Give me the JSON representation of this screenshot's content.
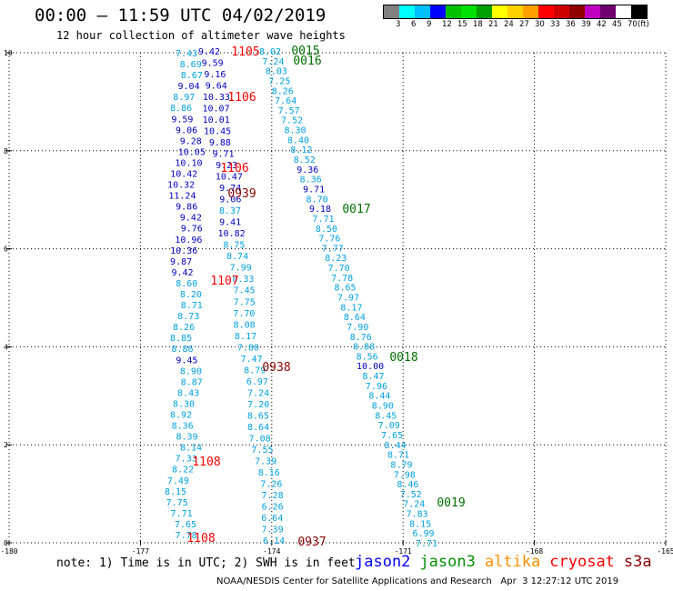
{
  "header": {
    "title": "00:00 – 11:59 UTC 04/02/2019",
    "subtitle": "12 hour collection of altimeter wave heights"
  },
  "legend": {
    "colors": [
      "#808080",
      "#00ffff",
      "#00c0ff",
      "#0000ff",
      "#00c000",
      "#00e000",
      "#00a000",
      "#ffff00",
      "#ffd000",
      "#ffa000",
      "#ff0000",
      "#d00000",
      "#900000",
      "#c000c0",
      "#700070",
      "#ffffff",
      "#000000"
    ],
    "labels": [
      "3",
      "6",
      "9",
      "12",
      "15",
      "18",
      "21",
      "24",
      "27",
      "30",
      "33",
      "36",
      "39",
      "42",
      "45",
      "70",
      "(ft)"
    ]
  },
  "chart_data": {
    "type": "scatter",
    "title": "12 hour collection of altimeter wave heights",
    "xlim": [
      -180,
      -165
    ],
    "ylim": [
      0,
      10
    ],
    "xticks": [
      -180,
      -177,
      -174,
      -171,
      -168,
      -165
    ],
    "xtick_labels": [
      "-180",
      "-177",
      "-174",
      "-171",
      "-168",
      "-165"
    ],
    "yticks": [
      0,
      2,
      4,
      6,
      8,
      10
    ],
    "ytick_labels": [
      "0",
      "2",
      "4",
      "6",
      "8",
      "10"
    ],
    "grid": true,
    "units": "SWH in feet",
    "track_a_values": [
      "7.43",
      "8.69",
      "8.67",
      "9.04",
      "8.97",
      "8.86",
      "9.59",
      "9.06",
      "9.28",
      "10.05",
      "10.10",
      "10.42",
      "10.32",
      "11.24",
      "9.86",
      "9.42",
      "9.76",
      "10.96",
      "10.36",
      "9.87",
      "9.42",
      "8.60",
      "8.20",
      "8.71",
      "8.73",
      "8.26",
      "8.85",
      "8.86",
      "9.45",
      "8.90",
      "8.87",
      "8.43",
      "8.30",
      "8.92",
      "8.36",
      "8.39",
      "8.14",
      "7.33",
      "8.22",
      "7.49",
      "8.15",
      "7.75",
      "7.71",
      "7.65",
      "7.78"
    ],
    "track_b_values": [
      "9.42",
      "9.59",
      "9.16",
      "9.64",
      "10.33",
      "10.07",
      "10.01",
      "10.45",
      "9.88",
      "9.71",
      "9.23",
      "10.47",
      "9.74",
      "9.06",
      "8.37",
      "9.41",
      "10.82",
      "8.75",
      "8.74",
      "7.99",
      "8.33",
      "7.45",
      "7.75",
      "7.70",
      "8.08",
      "8.17",
      "7.80",
      "7.47",
      "8.79",
      "6.97",
      "7.24",
      "7.20",
      "8.65",
      "8.64",
      "7.08",
      "7.55",
      "7.39",
      "8.16",
      "7.26",
      "7.28",
      "6.26",
      "6.64",
      "7.39",
      "6.14"
    ],
    "track_c_values": [
      "8.02",
      "7.24",
      "8.03",
      "7.25",
      "8.26",
      "7.64",
      "7.57",
      "7.52",
      "8.30",
      "8.40",
      "8.12",
      "8.52",
      "9.36",
      "8.36",
      "9.71",
      "8.70",
      "9.18",
      "7.71",
      "8.50",
      "7.76",
      "7.77",
      "8.23",
      "7.70",
      "7.78",
      "8.65",
      "7.97",
      "8.17",
      "8.64",
      "7.90",
      "8.76",
      "8.88",
      "8.56",
      "10.00",
      "8.47",
      "7.96",
      "8.44",
      "8.90",
      "8.45",
      "7.09",
      "7.65",
      "8.44",
      "8.71",
      "8.79",
      "7.98",
      "8.46",
      "7.52",
      "7.24",
      "7.83",
      "8.15",
      "6.99",
      "7.71"
    ],
    "pass_labels": [
      {
        "text": "1105",
        "satellite": "s3a"
      },
      {
        "text": "0015",
        "satellite": "jason3"
      },
      {
        "text": "0016",
        "satellite": "jason3"
      },
      {
        "text": "1106",
        "satellite": "s3a"
      },
      {
        "text": "1106",
        "satellite": "s3a"
      },
      {
        "text": "0939",
        "satellite": "cryosat"
      },
      {
        "text": "0017",
        "satellite": "jason3"
      },
      {
        "text": "1107",
        "satellite": "s3a"
      },
      {
        "text": "0018",
        "satellite": "jason3"
      },
      {
        "text": "0938",
        "satellite": "cryosat"
      },
      {
        "text": "1108",
        "satellite": "s3a"
      },
      {
        "text": "0019",
        "satellite": "jason3"
      },
      {
        "text": "1108",
        "satellite": "s3a"
      },
      {
        "text": "0937",
        "satellite": "cryosat"
      }
    ]
  },
  "notes": {
    "text": "note: 1) Time is in UTC; 2) SWH is in feet"
  },
  "satellites": [
    {
      "name": "jason2",
      "color": "#0000ff"
    },
    {
      "name": "jason3",
      "color": "#009000"
    },
    {
      "name": "altika",
      "color": "#ff9000"
    },
    {
      "name": "cryosat",
      "color": "#ff0000"
    },
    {
      "name": "s3a",
      "color": "#8b0000"
    }
  ],
  "footer": {
    "center": "NOAA/NESDIS Center for Satellite Applications and Research",
    "timestamp": "Apr  3 12:27:12 UTC 2019"
  },
  "colors": {
    "swh_low": "#00a0e0",
    "swh_mid": "#0000c0",
    "jason3": "#007000",
    "s3a": "#ff0000",
    "cryosat": "#8b0000"
  }
}
